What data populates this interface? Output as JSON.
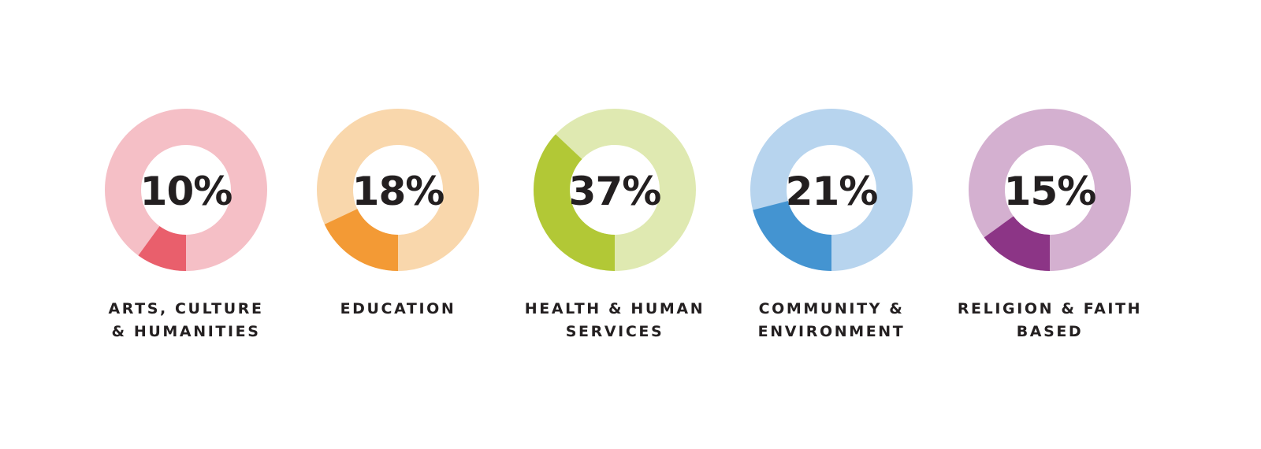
{
  "chart_data": {
    "type": "pie",
    "categories": [
      "Arts, Culture & Humanities",
      "Education",
      "Health & Human Services",
      "Community & Environment",
      "Religion & Faith Based"
    ],
    "values": [
      10,
      18,
      37,
      21,
      15
    ],
    "value_labels": [
      "10%",
      "18%",
      "37%",
      "21%",
      "15%"
    ],
    "label_lines": [
      [
        "ARTS, CULTURE",
        "& HUMANITIES"
      ],
      [
        "EDUCATION"
      ],
      [
        "HEALTH & HUMAN",
        "SERVICES"
      ],
      [
        "COMMUNITY &",
        "ENVIRONMENT"
      ],
      [
        "RELIGION & FAITH",
        "BASED"
      ]
    ],
    "colors": [
      {
        "light": "#f5bfc6",
        "dark": "#e95f6c"
      },
      {
        "light": "#f9d7ac",
        "dark": "#f39a35"
      },
      {
        "light": "#dfe9b1",
        "dark": "#b2c836"
      },
      {
        "light": "#b7d4ee",
        "dark": "#4494d1"
      },
      {
        "light": "#d4b0d0",
        "dark": "#8c3586"
      }
    ],
    "title": "",
    "legend": "none"
  }
}
